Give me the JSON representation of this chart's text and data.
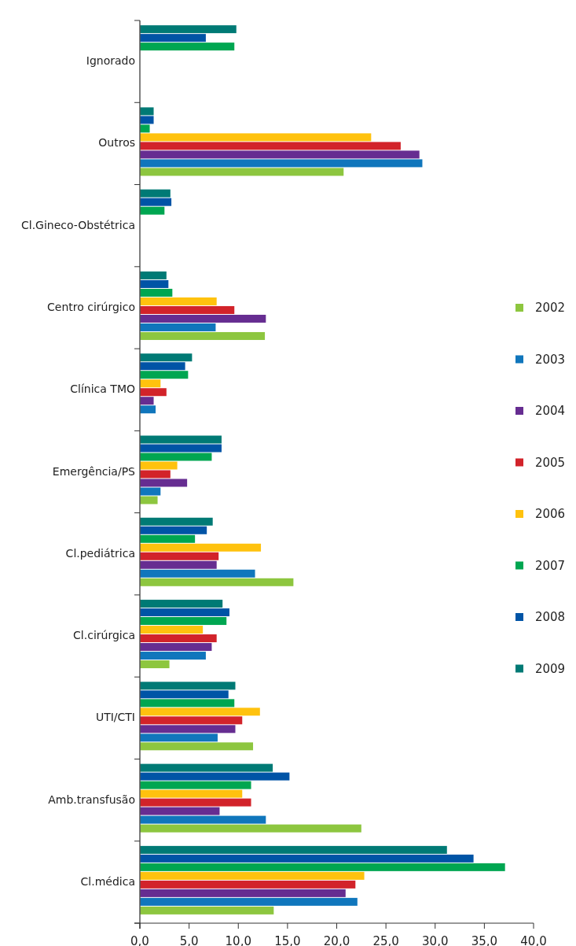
{
  "chart_data": {
    "type": "bar",
    "orientation": "horizontal",
    "categories": [
      "Ignorado",
      "Outros",
      "Cl.Gineco-Obstétrica",
      "Centro cirúrgico",
      "Clínica TMO",
      "Emergência/PS",
      "Cl.pediátrica",
      "Cl.cirúrgica",
      "UTI/CTI",
      "Amb.transfusão",
      "Cl.médica"
    ],
    "series": [
      {
        "name": "2002",
        "color": "#8dc63f",
        "values": [
          null,
          20.7,
          null,
          12.7,
          null,
          1.8,
          15.6,
          3.0,
          11.5,
          22.5,
          13.6
        ]
      },
      {
        "name": "2003",
        "color": "#1076bc",
        "values": [
          null,
          28.7,
          null,
          7.7,
          1.6,
          2.1,
          11.7,
          6.7,
          7.9,
          12.8,
          22.1
        ]
      },
      {
        "name": "2004",
        "color": "#662d91",
        "values": [
          null,
          28.4,
          null,
          12.8,
          1.4,
          4.8,
          7.8,
          7.3,
          9.7,
          8.1,
          20.9
        ]
      },
      {
        "name": "2005",
        "color": "#d2232a",
        "values": [
          null,
          26.5,
          null,
          9.6,
          2.7,
          3.1,
          8.0,
          7.8,
          10.4,
          11.3,
          21.9
        ]
      },
      {
        "name": "2006",
        "color": "#ffc20e",
        "values": [
          null,
          23.5,
          null,
          7.8,
          2.1,
          3.8,
          12.3,
          6.4,
          12.2,
          10.4,
          22.8
        ]
      },
      {
        "name": "2007",
        "color": "#00a651",
        "values": [
          9.6,
          1.0,
          2.5,
          3.3,
          4.9,
          7.3,
          5.6,
          8.8,
          9.6,
          11.3,
          37.1
        ]
      },
      {
        "name": "2008",
        "color": "#0054a6",
        "values": [
          6.7,
          1.4,
          3.2,
          2.9,
          4.6,
          8.3,
          6.8,
          9.1,
          9.0,
          15.2,
          33.9
        ]
      },
      {
        "name": "2009",
        "color": "#007a75",
        "values": [
          9.8,
          1.4,
          3.1,
          2.7,
          5.3,
          8.3,
          7.4,
          8.4,
          9.7,
          13.5,
          31.2
        ]
      }
    ],
    "xlim": [
      0,
      40
    ],
    "xticks": [
      {
        "value": 0,
        "label": "0,0"
      },
      {
        "value": 5,
        "label": "5,0"
      },
      {
        "value": 10,
        "label": "10,0"
      },
      {
        "value": 15,
        "label": "15,0"
      },
      {
        "value": 20,
        "label": "20,0"
      },
      {
        "value": 25,
        "label": "25,0"
      },
      {
        "value": 30,
        "label": "30,0"
      },
      {
        "value": 35,
        "label": "35,0"
      },
      {
        "value": 40,
        "label": "40,0"
      }
    ],
    "grid": false,
    "legend": "right"
  }
}
